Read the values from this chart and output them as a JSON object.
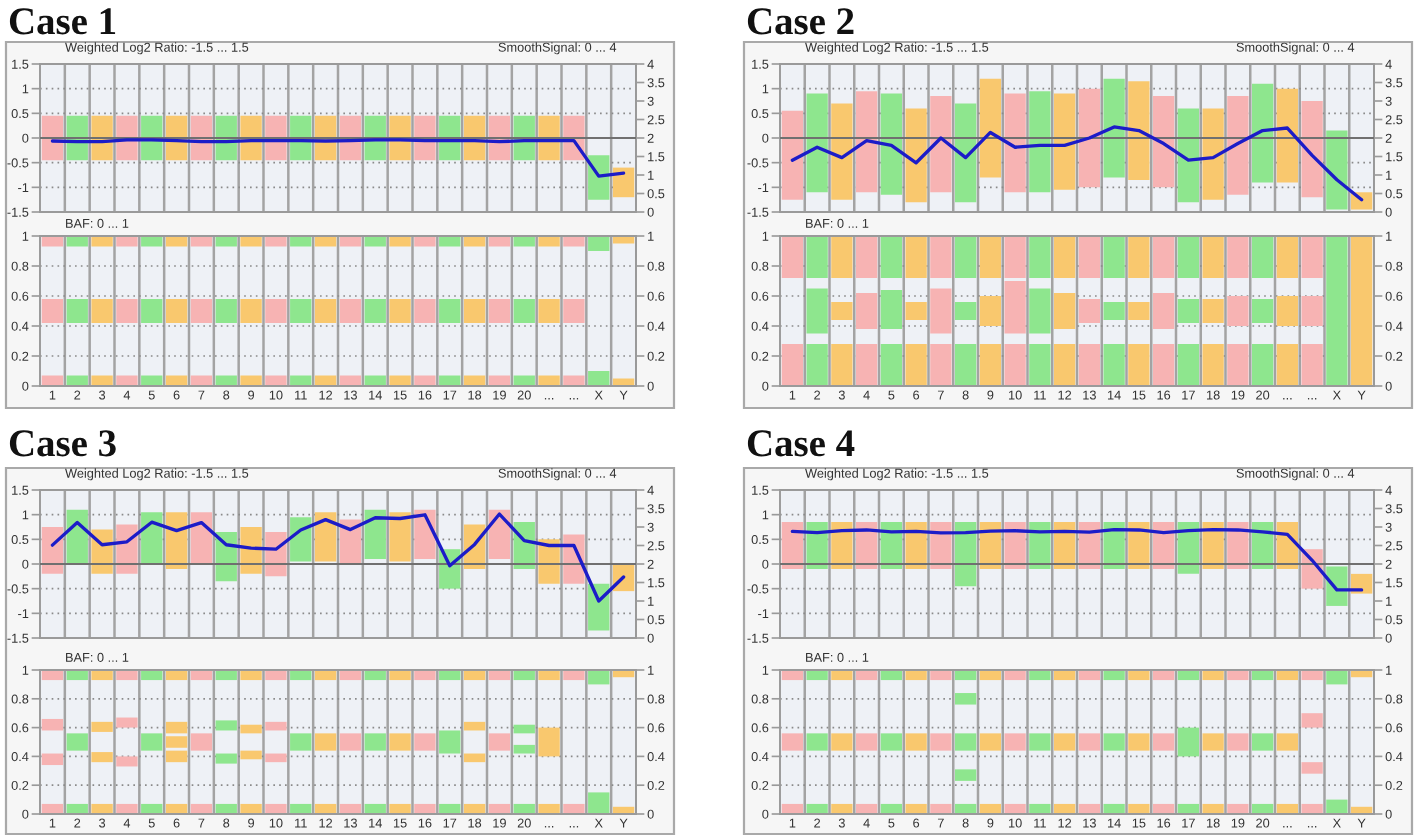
{
  "chart_data": [
    {
      "type": "bar",
      "title": "Case 1",
      "ylabel": "Weighted Log2 Ratio: -1.5 ... 1.5",
      "y2label": "SmoothSignal: 0 ... 4",
      "categories": [
        null,
        null,
        null,
        null,
        null,
        null,
        null,
        null,
        null,
        null,
        null,
        null,
        null,
        null,
        null,
        null,
        null,
        null,
        null,
        null,
        null,
        null,
        null,
        null
      ],
      "ylim": [
        -1.5,
        1.5
      ],
      "yticks": [
        -1.5,
        -1,
        -0.5,
        0,
        0.5,
        1,
        1.5
      ],
      "y2lim": [
        0,
        4
      ],
      "y2ticks": [
        0,
        0.5,
        1,
        1.5,
        2,
        2.5,
        3,
        3.5,
        4
      ],
      "grid": true,
      "tick_labels": "y",
      "ref_lines": [
        {
          "axis": "y",
          "value": 0,
          "color": "#707070"
        }
      ],
      "series": [
        {
          "colors": [
            "#f7b3b3",
            "#8ee68e",
            "#f9c86e",
            "#f7b3b3",
            "#8ee68e",
            "#f9c86e",
            "#f7b3b3",
            "#8ee68e",
            "#f9c86e",
            "#f7b3b3",
            "#8ee68e",
            "#f9c86e",
            "#f7b3b3",
            "#8ee68e",
            "#f9c86e",
            "#f7b3b3",
            "#8ee68e",
            "#f9c86e",
            "#f7b3b3",
            "#8ee68e",
            "#f9c86e",
            "#f7b3b3",
            "#8ee68e",
            "#f9c86e"
          ],
          "base": [
            -0.45,
            -0.45,
            -0.45,
            -0.45,
            -0.45,
            -0.45,
            -0.45,
            -0.45,
            -0.45,
            -0.45,
            -0.45,
            -0.45,
            -0.45,
            -0.45,
            -0.45,
            -0.45,
            -0.45,
            -0.45,
            -0.45,
            -0.45,
            -0.45,
            -0.45,
            -1.25,
            -1.2
          ],
          "values": [
            0.9,
            0.9,
            0.9,
            0.9,
            0.9,
            0.9,
            0.9,
            0.9,
            0.9,
            0.9,
            0.9,
            0.9,
            0.9,
            0.9,
            0.9,
            0.9,
            0.9,
            0.9,
            0.9,
            0.9,
            0.9,
            0.9,
            0.9,
            0.6
          ]
        },
        {
          "type": "line",
          "axis": "y2",
          "color": "#1c1cc8",
          "values": [
            1.92,
            1.9,
            1.9,
            1.95,
            1.95,
            1.93,
            1.9,
            1.9,
            1.93,
            1.93,
            1.93,
            1.92,
            1.93,
            1.95,
            1.95,
            1.93,
            1.93,
            1.93,
            1.9,
            1.93,
            1.93,
            1.93,
            0.97,
            1.05
          ]
        }
      ]
    },
    {
      "type": "bar",
      "title": "Case 2",
      "ylabel": "Weighted Log2 Ratio: -1.5 ... 1.5",
      "y2label": "SmoothSignal: 0 ... 4",
      "categories": [
        null,
        null,
        null,
        null,
        null,
        null,
        null,
        null,
        null,
        null,
        null,
        null,
        null,
        null,
        null,
        null,
        null,
        null,
        null,
        null,
        null,
        null,
        null,
        null
      ],
      "ylim": [
        -1.5,
        1.5
      ],
      "yticks": [
        -1.5,
        -1,
        -0.5,
        0,
        0.5,
        1,
        1.5
      ],
      "y2lim": [
        0,
        4
      ],
      "y2ticks": [
        0,
        0.5,
        1,
        1.5,
        2,
        2.5,
        3,
        3.5,
        4
      ],
      "grid": true,
      "tick_labels": "y",
      "ref_lines": [
        {
          "axis": "y",
          "value": 0,
          "color": "#707070"
        }
      ],
      "series": [
        {
          "colors": [
            "#f7b3b3",
            "#8ee68e",
            "#f9c86e",
            "#f7b3b3",
            "#8ee68e",
            "#f9c86e",
            "#f7b3b3",
            "#8ee68e",
            "#f9c86e",
            "#f7b3b3",
            "#8ee68e",
            "#f9c86e",
            "#f7b3b3",
            "#8ee68e",
            "#f9c86e",
            "#f7b3b3",
            "#8ee68e",
            "#f9c86e",
            "#f7b3b3",
            "#8ee68e",
            "#f9c86e",
            "#f7b3b3",
            "#8ee68e",
            "#f9c86e"
          ],
          "base": [
            -1.25,
            -1.1,
            -1.25,
            -1.1,
            -1.15,
            -1.3,
            -1.1,
            -1.3,
            -0.8,
            -1.1,
            -1.1,
            -1.05,
            -1.0,
            -0.8,
            -0.85,
            -1.0,
            -1.3,
            -1.25,
            -1.15,
            -0.9,
            -0.9,
            -1.2,
            -1.45,
            -1.45
          ],
          "values": [
            1.8,
            2.0,
            1.95,
            2.05,
            2.05,
            1.9,
            1.95,
            2.0,
            2.0,
            2.0,
            2.05,
            1.95,
            2.0,
            2.0,
            2.0,
            1.85,
            1.9,
            1.85,
            2.0,
            2.0,
            1.9,
            1.95,
            1.6,
            0.35
          ]
        },
        {
          "type": "line",
          "axis": "y2",
          "color": "#1c1cc8",
          "values": [
            1.4,
            1.75,
            1.47,
            1.93,
            1.8,
            1.33,
            2.0,
            1.47,
            2.15,
            1.75,
            1.8,
            1.8,
            2.0,
            2.3,
            2.2,
            1.85,
            1.4,
            1.47,
            1.85,
            2.2,
            2.27,
            1.53,
            0.87,
            0.33
          ]
        }
      ]
    },
    {
      "type": "bar",
      "ylabel": "BAF: 0 ... 1",
      "categories": [
        "1",
        "2",
        "3",
        "4",
        "5",
        "6",
        "7",
        "8",
        "9",
        "10",
        "11",
        "12",
        "13",
        "14",
        "15",
        "16",
        "17",
        "18",
        "19",
        "20",
        "...",
        "...",
        "X",
        "Y"
      ],
      "ylim": [
        0,
        1
      ],
      "yticks": [
        0,
        0.2,
        0.4,
        0.6,
        0.8,
        1
      ],
      "y2lim": [
        0,
        1
      ],
      "y2ticks": [
        0,
        0.2,
        0.4,
        0.6,
        0.8,
        1
      ],
      "grid": true,
      "series": [
        {
          "colors": [
            "#f7b3b3",
            "#8ee68e",
            "#f9c86e",
            "#f7b3b3",
            "#8ee68e",
            "#f9c86e",
            "#f7b3b3",
            "#8ee68e",
            "#f9c86e",
            "#f7b3b3",
            "#8ee68e",
            "#f9c86e",
            "#f7b3b3",
            "#8ee68e",
            "#f9c86e",
            "#f7b3b3",
            "#8ee68e",
            "#f9c86e",
            "#f7b3b3",
            "#8ee68e",
            "#f9c86e",
            "#f7b3b3",
            "#8ee68e",
            "#f9c86e"
          ],
          "base": [
            0,
            0,
            0,
            0,
            0,
            0,
            0,
            0,
            0,
            0,
            0,
            0,
            0,
            0,
            0,
            0,
            0,
            0,
            0,
            0,
            0,
            0,
            0,
            0
          ],
          "values": [
            0.07,
            0.07,
            0.07,
            0.07,
            0.07,
            0.07,
            0.07,
            0.07,
            0.07,
            0.07,
            0.07,
            0.07,
            0.07,
            0.07,
            0.07,
            0.07,
            0.07,
            0.07,
            0.07,
            0.07,
            0.07,
            0.07,
            0.1,
            0.05
          ]
        },
        {
          "colors": [
            "#f7b3b3",
            "#8ee68e",
            "#f9c86e",
            "#f7b3b3",
            "#8ee68e",
            "#f9c86e",
            "#f7b3b3",
            "#8ee68e",
            "#f9c86e",
            "#f7b3b3",
            "#8ee68e",
            "#f9c86e",
            "#f7b3b3",
            "#8ee68e",
            "#f9c86e",
            "#f7b3b3",
            "#8ee68e",
            "#f9c86e",
            "#f7b3b3",
            "#8ee68e",
            "#f9c86e",
            "#f7b3b3",
            "#8ee68e",
            "#f9c86e"
          ],
          "base": [
            0.42,
            0.42,
            0.42,
            0.42,
            0.42,
            0.42,
            0.42,
            0.42,
            0.42,
            0.42,
            0.42,
            0.42,
            0.42,
            0.42,
            0.42,
            0.42,
            0.42,
            0.42,
            0.42,
            0.42,
            0.42,
            0.42,
            null,
            null
          ],
          "values": [
            0.16,
            0.16,
            0.16,
            0.16,
            0.16,
            0.16,
            0.16,
            0.16,
            0.16,
            0.16,
            0.16,
            0.16,
            0.16,
            0.16,
            0.16,
            0.16,
            0.16,
            0.16,
            0.16,
            0.16,
            0.16,
            0.16,
            null,
            null
          ]
        },
        {
          "colors": [
            "#f7b3b3",
            "#8ee68e",
            "#f9c86e",
            "#f7b3b3",
            "#8ee68e",
            "#f9c86e",
            "#f7b3b3",
            "#8ee68e",
            "#f9c86e",
            "#f7b3b3",
            "#8ee68e",
            "#f9c86e",
            "#f7b3b3",
            "#8ee68e",
            "#f9c86e",
            "#f7b3b3",
            "#8ee68e",
            "#f9c86e",
            "#f7b3b3",
            "#8ee68e",
            "#f9c86e",
            "#f7b3b3",
            "#8ee68e",
            "#f9c86e"
          ],
          "base": [
            0.93,
            0.93,
            0.93,
            0.93,
            0.93,
            0.93,
            0.93,
            0.93,
            0.93,
            0.93,
            0.93,
            0.93,
            0.93,
            0.93,
            0.93,
            0.93,
            0.93,
            0.93,
            0.93,
            0.93,
            0.93,
            0.93,
            0.9,
            0.95
          ],
          "values": [
            0.07,
            0.07,
            0.07,
            0.07,
            0.07,
            0.07,
            0.07,
            0.07,
            0.07,
            0.07,
            0.07,
            0.07,
            0.07,
            0.07,
            0.07,
            0.07,
            0.07,
            0.07,
            0.07,
            0.07,
            0.07,
            0.07,
            0.1,
            0.05
          ]
        }
      ]
    },
    {
      "type": "bar",
      "ylabel": "BAF: 0 ... 1",
      "categories": [
        "1",
        "2",
        "3",
        "4",
        "5",
        "6",
        "7",
        "8",
        "9",
        "10",
        "11",
        "12",
        "13",
        "14",
        "15",
        "16",
        "17",
        "18",
        "19",
        "20",
        "...",
        "...",
        "X",
        "Y"
      ],
      "ylim": [
        0,
        1
      ],
      "yticks": [
        0,
        0.2,
        0.4,
        0.6,
        0.8,
        1
      ],
      "y2lim": [
        0,
        1
      ],
      "y2ticks": [
        0,
        0.2,
        0.4,
        0.6,
        0.8,
        1
      ],
      "grid": true,
      "series": [
        {
          "colors": [
            "#f7b3b3",
            "#8ee68e",
            "#f9c86e",
            "#f7b3b3",
            "#8ee68e",
            "#f9c86e",
            "#f7b3b3",
            "#8ee68e",
            "#f9c86e",
            "#f7b3b3",
            "#8ee68e",
            "#f9c86e",
            "#f7b3b3",
            "#8ee68e",
            "#f9c86e",
            "#f7b3b3",
            "#8ee68e",
            "#f9c86e",
            "#f7b3b3",
            "#8ee68e",
            "#f9c86e",
            "#f7b3b3",
            "#8ee68e",
            "#f9c86e"
          ],
          "base": [
            0,
            0,
            0,
            0,
            0,
            0,
            0,
            0,
            0,
            0,
            0,
            0,
            0,
            0,
            0,
            0,
            0,
            0,
            0,
            0,
            0,
            0,
            0,
            0
          ],
          "values": [
            0.28,
            0.28,
            0.28,
            0.28,
            0.28,
            0.28,
            0.28,
            0.28,
            0.28,
            0.28,
            0.28,
            0.28,
            0.28,
            0.28,
            0.28,
            0.28,
            0.28,
            0.28,
            0.28,
            0.28,
            0.28,
            0.28,
            0.28,
            0.28
          ]
        },
        {
          "colors": [
            "#f7b3b3",
            "#8ee68e",
            "#f9c86e",
            "#f7b3b3",
            "#8ee68e",
            "#f9c86e",
            "#f7b3b3",
            "#8ee68e",
            "#f9c86e",
            "#f7b3b3",
            "#8ee68e",
            "#f9c86e",
            "#f7b3b3",
            "#8ee68e",
            "#f9c86e",
            "#f7b3b3",
            "#8ee68e",
            "#f9c86e",
            "#f7b3b3",
            "#8ee68e",
            "#f9c86e",
            "#f7b3b3",
            "#8ee68e",
            "#f9c86e"
          ],
          "base": [
            null,
            0.35,
            0.44,
            0.38,
            0.38,
            0.44,
            0.35,
            0.44,
            0.4,
            0.35,
            0.35,
            0.38,
            0.42,
            0.44,
            0.44,
            0.38,
            0.42,
            0.42,
            0.4,
            0.42,
            0.4,
            0.4,
            0.28,
            0.28
          ],
          "values": [
            null,
            0.3,
            0.12,
            0.24,
            0.26,
            0.12,
            0.3,
            0.12,
            0.2,
            0.35,
            0.3,
            0.24,
            0.16,
            0.12,
            0.12,
            0.24,
            0.16,
            0.16,
            0.2,
            0.16,
            0.2,
            0.2,
            0.44,
            0.44
          ]
        },
        {
          "colors": [
            "#f7b3b3",
            "#8ee68e",
            "#f9c86e",
            "#f7b3b3",
            "#8ee68e",
            "#f9c86e",
            "#f7b3b3",
            "#8ee68e",
            "#f9c86e",
            "#f7b3b3",
            "#8ee68e",
            "#f9c86e",
            "#f7b3b3",
            "#8ee68e",
            "#f9c86e",
            "#f7b3b3",
            "#8ee68e",
            "#f9c86e",
            "#f7b3b3",
            "#8ee68e",
            "#f9c86e",
            "#f7b3b3",
            "#8ee68e",
            "#f9c86e"
          ],
          "base": [
            0.72,
            0.72,
            0.72,
            0.72,
            0.72,
            0.72,
            0.72,
            0.72,
            0.72,
            0.72,
            0.72,
            0.72,
            0.72,
            0.72,
            0.72,
            0.72,
            0.72,
            0.72,
            0.72,
            0.72,
            0.72,
            0.72,
            0.72,
            0.72
          ],
          "values": [
            0.28,
            0.28,
            0.28,
            0.28,
            0.28,
            0.28,
            0.28,
            0.28,
            0.28,
            0.28,
            0.28,
            0.28,
            0.28,
            0.28,
            0.28,
            0.28,
            0.28,
            0.28,
            0.28,
            0.28,
            0.28,
            0.28,
            0.28,
            0.28
          ]
        }
      ]
    },
    {
      "type": "bar",
      "title": "Case 3",
      "ylabel": "Weighted Log2 Ratio: -1.5 ... 1.5",
      "y2label": "SmoothSignal: 0 ... 4",
      "categories": [
        null,
        null,
        null,
        null,
        null,
        null,
        null,
        null,
        null,
        null,
        null,
        null,
        null,
        null,
        null,
        null,
        null,
        null,
        null,
        null,
        null,
        null,
        null,
        null
      ],
      "ylim": [
        -1.5,
        1.5
      ],
      "yticks": [
        -1.5,
        -1,
        -0.5,
        0,
        0.5,
        1,
        1.5
      ],
      "y2lim": [
        0,
        4
      ],
      "y2ticks": [
        0,
        0.5,
        1,
        1.5,
        2,
        2.5,
        3,
        3.5,
        4
      ],
      "grid": true,
      "tick_labels": "y",
      "ref_lines": [
        {
          "axis": "y",
          "value": 0,
          "color": "#707070"
        }
      ],
      "series": [
        {
          "colors": [
            "#f7b3b3",
            "#8ee68e",
            "#f9c86e",
            "#f7b3b3",
            "#8ee68e",
            "#f9c86e",
            "#f7b3b3",
            "#8ee68e",
            "#f9c86e",
            "#f7b3b3",
            "#8ee68e",
            "#f9c86e",
            "#f7b3b3",
            "#8ee68e",
            "#f9c86e",
            "#f7b3b3",
            "#8ee68e",
            "#f9c86e",
            "#f7b3b3",
            "#8ee68e",
            "#f9c86e",
            "#f7b3b3",
            "#8ee68e",
            "#f9c86e"
          ],
          "base": [
            -0.2,
            0,
            -0.2,
            -0.2,
            0,
            -0.1,
            0,
            -0.35,
            -0.2,
            -0.25,
            0.05,
            0.05,
            0,
            0.1,
            0.05,
            0.1,
            -0.5,
            -0.1,
            0.1,
            -0.1,
            -0.4,
            -0.4,
            -1.35,
            -0.55
          ],
          "values": [
            0.95,
            1.1,
            0.9,
            1.0,
            1.05,
            1.15,
            1.05,
            1.0,
            0.95,
            0.9,
            0.9,
            1.0,
            0.9,
            1.0,
            1.0,
            1.0,
            0.8,
            0.9,
            1.0,
            0.95,
            0.9,
            1.0,
            0.95,
            0.55
          ]
        },
        {
          "type": "line",
          "axis": "y2",
          "color": "#1c1cc8",
          "values": [
            2.51,
            3.12,
            2.52,
            2.6,
            3.13,
            2.9,
            3.12,
            2.52,
            2.43,
            2.4,
            2.92,
            3.2,
            2.93,
            3.25,
            3.23,
            3.33,
            1.95,
            2.53,
            3.35,
            2.63,
            2.5,
            2.5,
            1.0,
            1.65
          ]
        }
      ]
    },
    {
      "type": "bar",
      "title": "Case 4",
      "ylabel": "Weighted Log2 Ratio: -1.5 ... 1.5",
      "y2label": "SmoothSignal: 0 ... 4",
      "categories": [
        null,
        null,
        null,
        null,
        null,
        null,
        null,
        null,
        null,
        null,
        null,
        null,
        null,
        null,
        null,
        null,
        null,
        null,
        null,
        null,
        null,
        null,
        null,
        null
      ],
      "ylim": [
        -1.5,
        1.5
      ],
      "yticks": [
        -1.5,
        -1,
        -0.5,
        0,
        0.5,
        1,
        1.5
      ],
      "y2lim": [
        0,
        4
      ],
      "y2ticks": [
        0,
        0.5,
        1,
        1.5,
        2,
        2.5,
        3,
        3.5,
        4
      ],
      "grid": true,
      "tick_labels": "y",
      "ref_lines": [
        {
          "axis": "y",
          "value": 0,
          "color": "#707070"
        }
      ],
      "series": [
        {
          "colors": [
            "#f7b3b3",
            "#8ee68e",
            "#f9c86e",
            "#f7b3b3",
            "#8ee68e",
            "#f9c86e",
            "#f7b3b3",
            "#8ee68e",
            "#f9c86e",
            "#f7b3b3",
            "#8ee68e",
            "#f9c86e",
            "#f7b3b3",
            "#8ee68e",
            "#f9c86e",
            "#f7b3b3",
            "#8ee68e",
            "#f9c86e",
            "#f7b3b3",
            "#8ee68e",
            "#f9c86e",
            "#f7b3b3",
            "#8ee68e",
            "#f9c86e"
          ],
          "base": [
            -0.1,
            -0.1,
            -0.1,
            -0.1,
            -0.1,
            -0.1,
            -0.1,
            -0.45,
            -0.1,
            -0.1,
            -0.1,
            -0.1,
            -0.1,
            -0.1,
            -0.1,
            -0.1,
            -0.2,
            -0.1,
            -0.1,
            -0.1,
            -0.1,
            -0.5,
            -0.85,
            -0.6
          ],
          "values": [
            0.95,
            0.95,
            0.95,
            0.95,
            0.95,
            0.95,
            0.95,
            1.3,
            0.95,
            0.95,
            0.95,
            0.95,
            0.95,
            0.95,
            0.95,
            0.95,
            1.05,
            0.95,
            0.95,
            0.95,
            0.95,
            0.8,
            0.8,
            0.4
          ]
        },
        {
          "type": "line",
          "axis": "y2",
          "color": "#1c1cc8",
          "values": [
            2.88,
            2.85,
            2.9,
            2.92,
            2.87,
            2.88,
            2.84,
            2.85,
            2.89,
            2.9,
            2.87,
            2.88,
            2.86,
            2.93,
            2.92,
            2.85,
            2.9,
            2.93,
            2.92,
            2.87,
            2.8,
            2.1,
            1.3,
            1.3
          ]
        }
      ]
    },
    {
      "type": "bar",
      "ylabel": "BAF: 0 ... 1",
      "categories": [
        "1",
        "2",
        "3",
        "4",
        "5",
        "6",
        "7",
        "8",
        "9",
        "10",
        "11",
        "12",
        "13",
        "14",
        "15",
        "16",
        "17",
        "18",
        "19",
        "20",
        "...",
        "...",
        "X",
        "Y"
      ],
      "ylim": [
        0,
        1
      ],
      "yticks": [
        0,
        0.2,
        0.4,
        0.6,
        0.8,
        1
      ],
      "y2lim": [
        0,
        1
      ],
      "y2ticks": [
        0,
        0.2,
        0.4,
        0.6,
        0.8,
        1
      ],
      "grid": true,
      "series": [
        {
          "colors": [
            "#f7b3b3",
            "#8ee68e",
            "#f9c86e",
            "#f7b3b3",
            "#8ee68e",
            "#f9c86e",
            "#f7b3b3",
            "#8ee68e",
            "#f9c86e",
            "#f7b3b3",
            "#8ee68e",
            "#f9c86e",
            "#f7b3b3",
            "#8ee68e",
            "#f9c86e",
            "#f7b3b3",
            "#8ee68e",
            "#f9c86e",
            "#f7b3b3",
            "#8ee68e",
            "#f9c86e",
            "#f7b3b3",
            "#8ee68e",
            "#f9c86e"
          ],
          "base": [
            0,
            0,
            0,
            0,
            0,
            0,
            0,
            0,
            0,
            0,
            0,
            0,
            0,
            0,
            0,
            0,
            0,
            0,
            0,
            0,
            0,
            0,
            0,
            0
          ],
          "values": [
            0.07,
            0.07,
            0.07,
            0.07,
            0.07,
            0.07,
            0.07,
            0.07,
            0.07,
            0.07,
            0.07,
            0.07,
            0.07,
            0.07,
            0.07,
            0.07,
            0.07,
            0.07,
            0.07,
            0.07,
            0.07,
            0.07,
            0.15,
            0.05
          ]
        },
        {
          "colors": [
            "#f7b3b3",
            "#8ee68e",
            "#f9c86e",
            "#f7b3b3",
            "#8ee68e",
            "#f9c86e",
            "#f7b3b3",
            "#8ee68e",
            "#f9c86e",
            "#f7b3b3",
            "#8ee68e",
            "#f9c86e",
            "#f7b3b3",
            "#8ee68e",
            "#f9c86e",
            "#f7b3b3",
            "#8ee68e",
            "#f9c86e",
            "#f7b3b3",
            "#8ee68e",
            "#f9c86e",
            "#f7b3b3",
            "#8ee68e",
            "#f9c86e"
          ],
          "base": [
            0.34,
            null,
            0.36,
            0.33,
            null,
            0.36,
            null,
            0.35,
            0.38,
            0.36,
            null,
            null,
            null,
            null,
            null,
            null,
            null,
            0.36,
            null,
            0.42,
            null,
            null,
            null,
            null
          ],
          "values": [
            0.08,
            null,
            0.07,
            0.07,
            null,
            0.08,
            null,
            0.07,
            0.06,
            0.06,
            null,
            null,
            null,
            null,
            null,
            null,
            null,
            0.06,
            null,
            0.06,
            null,
            null,
            null,
            null
          ]
        },
        {
          "colors": [
            "#f7b3b3",
            "#8ee68e",
            "#f9c86e",
            "#f7b3b3",
            "#8ee68e",
            "#f9c86e",
            "#f7b3b3",
            "#8ee68e",
            "#f9c86e",
            "#f7b3b3",
            "#8ee68e",
            "#f9c86e",
            "#f7b3b3",
            "#8ee68e",
            "#f9c86e",
            "#f7b3b3",
            "#8ee68e",
            "#f9c86e",
            "#f7b3b3",
            "#8ee68e",
            "#f9c86e",
            "#f7b3b3",
            "#8ee68e",
            "#f9c86e"
          ],
          "base": [
            null,
            0.44,
            null,
            null,
            0.44,
            0.46,
            0.44,
            null,
            null,
            null,
            0.44,
            0.44,
            0.44,
            0.44,
            0.44,
            0.44,
            0.42,
            null,
            0.44,
            null,
            0.4,
            null,
            null,
            null
          ],
          "values": [
            null,
            0.12,
            null,
            null,
            0.12,
            0.08,
            0.12,
            null,
            null,
            null,
            0.12,
            0.12,
            0.12,
            0.12,
            0.12,
            0.12,
            0.16,
            null,
            0.12,
            null,
            0.2,
            null,
            null,
            null
          ]
        },
        {
          "colors": [
            "#f7b3b3",
            "#8ee68e",
            "#f9c86e",
            "#f7b3b3",
            "#8ee68e",
            "#f9c86e",
            "#f7b3b3",
            "#8ee68e",
            "#f9c86e",
            "#f7b3b3",
            "#8ee68e",
            "#f9c86e",
            "#f7b3b3",
            "#8ee68e",
            "#f9c86e",
            "#f7b3b3",
            "#8ee68e",
            "#f9c86e",
            "#f7b3b3",
            "#8ee68e",
            "#f9c86e",
            "#f7b3b3",
            "#8ee68e",
            "#f9c86e"
          ],
          "base": [
            0.58,
            null,
            0.57,
            0.6,
            null,
            0.56,
            null,
            0.58,
            0.56,
            0.58,
            null,
            null,
            null,
            null,
            null,
            null,
            null,
            0.58,
            null,
            0.56,
            null,
            null,
            null,
            null
          ],
          "values": [
            0.08,
            null,
            0.07,
            0.07,
            null,
            0.08,
            null,
            0.07,
            0.06,
            0.06,
            null,
            null,
            null,
            null,
            null,
            null,
            null,
            0.06,
            null,
            0.06,
            null,
            null,
            null,
            null
          ]
        },
        {
          "colors": [
            "#f7b3b3",
            "#8ee68e",
            "#f9c86e",
            "#f7b3b3",
            "#8ee68e",
            "#f9c86e",
            "#f7b3b3",
            "#8ee68e",
            "#f9c86e",
            "#f7b3b3",
            "#8ee68e",
            "#f9c86e",
            "#f7b3b3",
            "#8ee68e",
            "#f9c86e",
            "#f7b3b3",
            "#8ee68e",
            "#f9c86e",
            "#f7b3b3",
            "#8ee68e",
            "#f9c86e",
            "#f7b3b3",
            "#8ee68e",
            "#f9c86e"
          ],
          "base": [
            0.93,
            0.93,
            0.93,
            0.93,
            0.93,
            0.93,
            0.93,
            0.93,
            0.93,
            0.93,
            0.93,
            0.93,
            0.93,
            0.93,
            0.93,
            0.93,
            0.93,
            0.93,
            0.93,
            0.93,
            0.93,
            0.93,
            0.9,
            0.95
          ],
          "values": [
            0.07,
            0.07,
            0.07,
            0.07,
            0.07,
            0.07,
            0.07,
            0.07,
            0.07,
            0.07,
            0.07,
            0.07,
            0.07,
            0.07,
            0.07,
            0.07,
            0.07,
            0.07,
            0.07,
            0.07,
            0.07,
            0.07,
            0.1,
            0.05
          ]
        }
      ]
    },
    {
      "type": "bar",
      "ylabel": "BAF: 0 ... 1",
      "categories": [
        "1",
        "2",
        "3",
        "4",
        "5",
        "6",
        "7",
        "8",
        "9",
        "10",
        "11",
        "12",
        "13",
        "14",
        "15",
        "16",
        "17",
        "18",
        "19",
        "20",
        "...",
        "...",
        "X",
        "Y"
      ],
      "ylim": [
        0,
        1
      ],
      "yticks": [
        0,
        0.2,
        0.4,
        0.6,
        0.8,
        1
      ],
      "y2lim": [
        0,
        1
      ],
      "y2ticks": [
        0,
        0.2,
        0.4,
        0.6,
        0.8,
        1
      ],
      "grid": true,
      "series": [
        {
          "colors": [
            "#f7b3b3",
            "#8ee68e",
            "#f9c86e",
            "#f7b3b3",
            "#8ee68e",
            "#f9c86e",
            "#f7b3b3",
            "#8ee68e",
            "#f9c86e",
            "#f7b3b3",
            "#8ee68e",
            "#f9c86e",
            "#f7b3b3",
            "#8ee68e",
            "#f9c86e",
            "#f7b3b3",
            "#8ee68e",
            "#f9c86e",
            "#f7b3b3",
            "#8ee68e",
            "#f9c86e",
            "#f7b3b3",
            "#8ee68e",
            "#f9c86e"
          ],
          "base": [
            0,
            0,
            0,
            0,
            0,
            0,
            0,
            0,
            0,
            0,
            0,
            0,
            0,
            0,
            0,
            0,
            0,
            0,
            0,
            0,
            0,
            0,
            0,
            0
          ],
          "values": [
            0.07,
            0.07,
            0.07,
            0.07,
            0.07,
            0.07,
            0.07,
            0.07,
            0.07,
            0.07,
            0.07,
            0.07,
            0.07,
            0.07,
            0.07,
            0.07,
            0.07,
            0.07,
            0.07,
            0.07,
            0.07,
            0.07,
            0.1,
            0.05
          ]
        },
        {
          "colors": [
            "#f7b3b3",
            "#8ee68e",
            "#f9c86e",
            "#f7b3b3",
            "#8ee68e",
            "#f9c86e",
            "#f7b3b3",
            "#8ee68e",
            "#f9c86e",
            "#f7b3b3",
            "#8ee68e",
            "#f9c86e",
            "#f7b3b3",
            "#8ee68e",
            "#f9c86e",
            "#f7b3b3",
            "#8ee68e",
            "#f9c86e",
            "#f7b3b3",
            "#8ee68e",
            "#f9c86e",
            "#f7b3b3",
            "#8ee68e",
            "#f9c86e"
          ],
          "base": [
            null,
            null,
            null,
            null,
            null,
            null,
            null,
            0.23,
            null,
            null,
            null,
            null,
            null,
            null,
            null,
            null,
            null,
            null,
            null,
            null,
            null,
            0.28,
            null,
            null
          ],
          "values": [
            null,
            null,
            null,
            null,
            null,
            null,
            null,
            0.08,
            null,
            null,
            null,
            null,
            null,
            null,
            null,
            null,
            null,
            null,
            null,
            null,
            null,
            0.08,
            null,
            null
          ]
        },
        {
          "colors": [
            "#f7b3b3",
            "#8ee68e",
            "#f9c86e",
            "#f7b3b3",
            "#8ee68e",
            "#f9c86e",
            "#f7b3b3",
            "#8ee68e",
            "#f9c86e",
            "#f7b3b3",
            "#8ee68e",
            "#f9c86e",
            "#f7b3b3",
            "#8ee68e",
            "#f9c86e",
            "#f7b3b3",
            "#8ee68e",
            "#f9c86e",
            "#f7b3b3",
            "#8ee68e",
            "#f9c86e",
            "#f7b3b3",
            "#8ee68e",
            "#f9c86e"
          ],
          "base": [
            0.44,
            0.44,
            0.44,
            0.44,
            0.44,
            0.44,
            0.44,
            0.44,
            0.44,
            0.44,
            0.44,
            0.44,
            0.44,
            0.44,
            0.44,
            0.44,
            0.4,
            0.44,
            0.44,
            0.44,
            0.44,
            null,
            null,
            null
          ],
          "values": [
            0.12,
            0.12,
            0.12,
            0.12,
            0.12,
            0.12,
            0.12,
            0.12,
            0.12,
            0.12,
            0.12,
            0.12,
            0.12,
            0.12,
            0.12,
            0.12,
            0.2,
            0.12,
            0.12,
            0.12,
            0.12,
            null,
            null,
            null
          ]
        },
        {
          "colors": [
            "#f7b3b3",
            "#8ee68e",
            "#f9c86e",
            "#f7b3b3",
            "#8ee68e",
            "#f9c86e",
            "#f7b3b3",
            "#8ee68e",
            "#f9c86e",
            "#f7b3b3",
            "#8ee68e",
            "#f9c86e",
            "#f7b3b3",
            "#8ee68e",
            "#f9c86e",
            "#f7b3b3",
            "#8ee68e",
            "#f9c86e",
            "#f7b3b3",
            "#8ee68e",
            "#f9c86e",
            "#f7b3b3",
            "#8ee68e",
            "#f9c86e"
          ],
          "base": [
            null,
            null,
            null,
            null,
            null,
            null,
            null,
            0.76,
            null,
            null,
            null,
            null,
            null,
            null,
            null,
            null,
            null,
            null,
            null,
            null,
            null,
            0.6,
            null,
            null
          ],
          "values": [
            null,
            null,
            null,
            null,
            null,
            null,
            null,
            0.08,
            null,
            null,
            null,
            null,
            null,
            null,
            null,
            null,
            null,
            null,
            null,
            null,
            null,
            0.1,
            null,
            null
          ]
        },
        {
          "colors": [
            "#f7b3b3",
            "#8ee68e",
            "#f9c86e",
            "#f7b3b3",
            "#8ee68e",
            "#f9c86e",
            "#f7b3b3",
            "#8ee68e",
            "#f9c86e",
            "#f7b3b3",
            "#8ee68e",
            "#f9c86e",
            "#f7b3b3",
            "#8ee68e",
            "#f9c86e",
            "#f7b3b3",
            "#8ee68e",
            "#f9c86e",
            "#f7b3b3",
            "#8ee68e",
            "#f9c86e",
            "#f7b3b3",
            "#8ee68e",
            "#f9c86e"
          ],
          "base": [
            0.93,
            0.93,
            0.93,
            0.93,
            0.93,
            0.93,
            0.93,
            0.93,
            0.93,
            0.93,
            0.93,
            0.93,
            0.93,
            0.93,
            0.93,
            0.93,
            0.93,
            0.93,
            0.93,
            0.93,
            0.93,
            0.93,
            0.9,
            0.95
          ],
          "values": [
            0.07,
            0.07,
            0.07,
            0.07,
            0.07,
            0.07,
            0.07,
            0.07,
            0.07,
            0.07,
            0.07,
            0.07,
            0.07,
            0.07,
            0.07,
            0.07,
            0.07,
            0.07,
            0.07,
            0.07,
            0.07,
            0.07,
            0.1,
            0.05
          ]
        }
      ]
    }
  ]
}
